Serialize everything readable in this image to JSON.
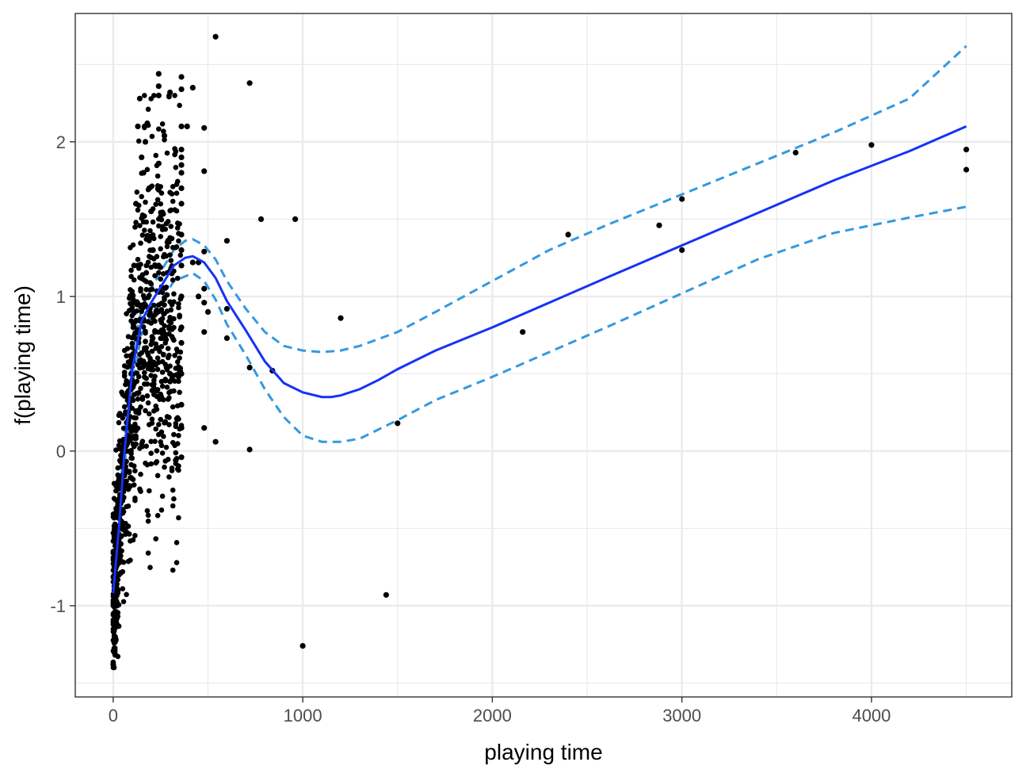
{
  "chart_data": {
    "type": "scatter",
    "title": "",
    "xlabel": "playing time",
    "ylabel": "f(playing time)",
    "xlim": [
      -200,
      4740
    ],
    "ylim": [
      -1.59,
      2.83
    ],
    "x_ticks": [
      0,
      1000,
      2000,
      3000,
      4000
    ],
    "x_tick_labels": [
      "0",
      "1000",
      "2000",
      "3000",
      "4000"
    ],
    "y_ticks": [
      -1,
      0,
      1,
      2
    ],
    "y_tick_labels": [
      "-1",
      "0",
      "1",
      "2"
    ],
    "x_minor": [
      500,
      1500,
      2500,
      3500,
      4500
    ],
    "y_minor": [
      -1.5,
      -0.5,
      0.5,
      1.5,
      2.5
    ],
    "grid": true,
    "legend": "none",
    "colors": {
      "points": "#000000",
      "fit": "#1533f5",
      "ci": "#3399e0",
      "grid": "#ebebeb",
      "panel_border": "#333333"
    },
    "series": [
      {
        "kind": "points",
        "cluster_range_x": [
          0,
          360
        ],
        "x": [
          0,
          5,
          10,
          15,
          20,
          25,
          30,
          35,
          40,
          45,
          50,
          55,
          60,
          65,
          70,
          75,
          80,
          85,
          90,
          95,
          100,
          110,
          120,
          130,
          140,
          150,
          160,
          170,
          180,
          190,
          200,
          210,
          240,
          240,
          240,
          240,
          240,
          270,
          300,
          300,
          300,
          330,
          360,
          360,
          360,
          360,
          360,
          360,
          360,
          360,
          360,
          360,
          360,
          360,
          360,
          360,
          360,
          360,
          360,
          360,
          360,
          390,
          420,
          420,
          450,
          450,
          480,
          480,
          480,
          480,
          480,
          480,
          480,
          500,
          540,
          540,
          600,
          600,
          600,
          720,
          720,
          720,
          780,
          840,
          960,
          1000,
          1200,
          1440,
          1500,
          2160,
          2400,
          2880,
          3000,
          3000,
          3600,
          4000,
          4500,
          4500
        ],
        "y": [
          -1.38,
          -1.3,
          -1.2,
          -1.1,
          -1.0,
          -0.9,
          -0.8,
          -0.7,
          -0.6,
          -0.5,
          -0.4,
          -0.3,
          -0.2,
          -0.1,
          0.0,
          0.1,
          0.2,
          0.3,
          0.4,
          0.5,
          0.6,
          1.2,
          1.6,
          2.1,
          2.28,
          1.9,
          1.8,
          2.0,
          2.12,
          1.7,
          1.55,
          1.3,
          2.44,
          2.36,
          2.3,
          1.86,
          1.2,
          2.04,
          2.32,
          0.5,
          0.45,
          -0.06,
          2.42,
          2.34,
          2.1,
          1.95,
          1.9,
          1.85,
          1.8,
          1.7,
          1.6,
          1.4,
          1.3,
          1.2,
          1.0,
          0.8,
          0.7,
          0.5,
          0.3,
          0.15,
          -0.04,
          2.1,
          2.35,
          1.22,
          1.22,
          1.0,
          2.09,
          1.81,
          1.29,
          1.05,
          0.96,
          0.77,
          0.15,
          0.9,
          2.68,
          0.06,
          1.36,
          0.92,
          0.73,
          2.38,
          0.54,
          0.01,
          1.5,
          0.52,
          1.5,
          -1.26,
          0.86,
          -0.93,
          0.18,
          0.77,
          1.4,
          1.46,
          1.63,
          1.3,
          1.93,
          1.98,
          1.95,
          1.82
        ]
      },
      {
        "kind": "line",
        "name": "",
        "x": [
          0,
          30,
          60,
          100,
          150,
          200,
          260,
          320,
          380,
          420,
          480,
          540,
          600,
          700,
          800,
          900,
          1000,
          1100,
          1150,
          1200,
          1300,
          1400,
          1500,
          1700,
          2000,
          2300,
          2600,
          3000,
          3400,
          3800,
          4200,
          4500
        ],
        "y": [
          -0.92,
          -0.5,
          0.0,
          0.52,
          0.84,
          0.96,
          1.08,
          1.2,
          1.25,
          1.26,
          1.22,
          1.12,
          0.97,
          0.78,
          0.58,
          0.44,
          0.38,
          0.35,
          0.35,
          0.36,
          0.4,
          0.46,
          0.53,
          0.65,
          0.8,
          0.96,
          1.12,
          1.33,
          1.54,
          1.75,
          1.94,
          2.1
        ]
      },
      {
        "kind": "ci-upper",
        "name": "",
        "x": [
          0,
          30,
          60,
          100,
          150,
          200,
          260,
          320,
          380,
          420,
          480,
          540,
          600,
          700,
          800,
          900,
          1000,
          1100,
          1200,
          1300,
          1500,
          1700,
          2000,
          2300,
          2600,
          3000,
          3400,
          3800,
          4200,
          4500
        ],
        "y": [
          -0.8,
          -0.38,
          0.1,
          0.62,
          0.92,
          1.05,
          1.18,
          1.3,
          1.36,
          1.37,
          1.33,
          1.24,
          1.1,
          0.92,
          0.77,
          0.68,
          0.65,
          0.64,
          0.65,
          0.68,
          0.77,
          0.9,
          1.1,
          1.3,
          1.46,
          1.66,
          1.86,
          2.06,
          2.28,
          2.62
        ]
      },
      {
        "kind": "ci-lower",
        "name": "",
        "x": [
          0,
          30,
          60,
          100,
          150,
          200,
          260,
          320,
          380,
          420,
          480,
          540,
          600,
          700,
          800,
          900,
          1000,
          1100,
          1200,
          1300,
          1500,
          1700,
          2000,
          2300,
          2600,
          3000,
          3400,
          3800,
          4200,
          4500
        ],
        "y": [
          -1.0,
          -0.62,
          -0.1,
          0.42,
          0.76,
          0.88,
          0.98,
          1.1,
          1.13,
          1.15,
          1.1,
          0.98,
          0.82,
          0.62,
          0.4,
          0.22,
          0.1,
          0.06,
          0.06,
          0.08,
          0.2,
          0.33,
          0.48,
          0.64,
          0.8,
          1.02,
          1.24,
          1.41,
          1.51,
          1.58
        ]
      }
    ]
  }
}
